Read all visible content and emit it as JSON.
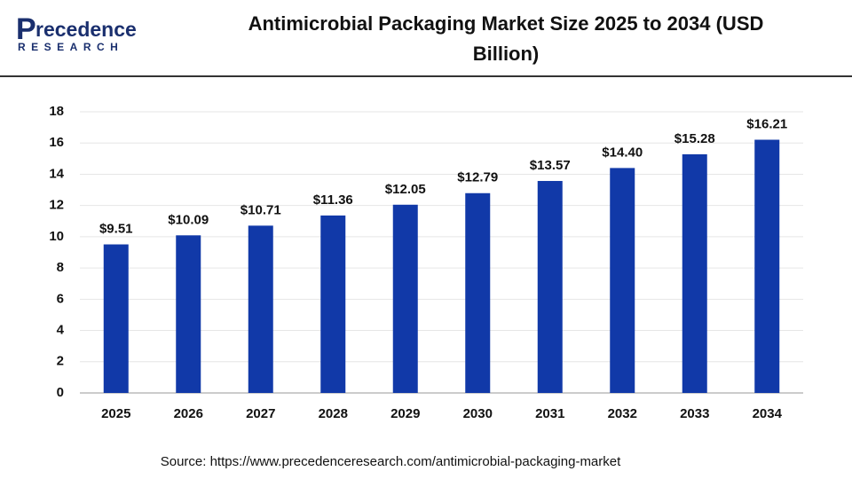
{
  "logo": {
    "name": "recedence",
    "tagline": "RESEARCH"
  },
  "chart_data": {
    "type": "bar",
    "title": "Antimicrobial Packaging Market Size 2025 to 2034 (USD Billion)",
    "categories": [
      "2025",
      "2026",
      "2027",
      "2028",
      "2029",
      "2030",
      "2031",
      "2032",
      "2033",
      "2034"
    ],
    "values": [
      9.51,
      10.09,
      10.71,
      11.36,
      12.05,
      12.79,
      13.57,
      14.4,
      15.28,
      16.21
    ],
    "value_labels": [
      "$9.51",
      "$10.09",
      "$10.71",
      "$11.36",
      "$12.05",
      "$12.79",
      "$13.57",
      "$14.40",
      "$15.28",
      "$16.21"
    ],
    "color": "#1139a8",
    "ylim": [
      0,
      18
    ],
    "yticks": [
      0,
      2,
      4,
      6,
      8,
      10,
      12,
      14,
      16,
      18
    ],
    "grid": true,
    "source": "Source: https://www.precedenceresearch.com/antimicrobial-packaging-market"
  }
}
